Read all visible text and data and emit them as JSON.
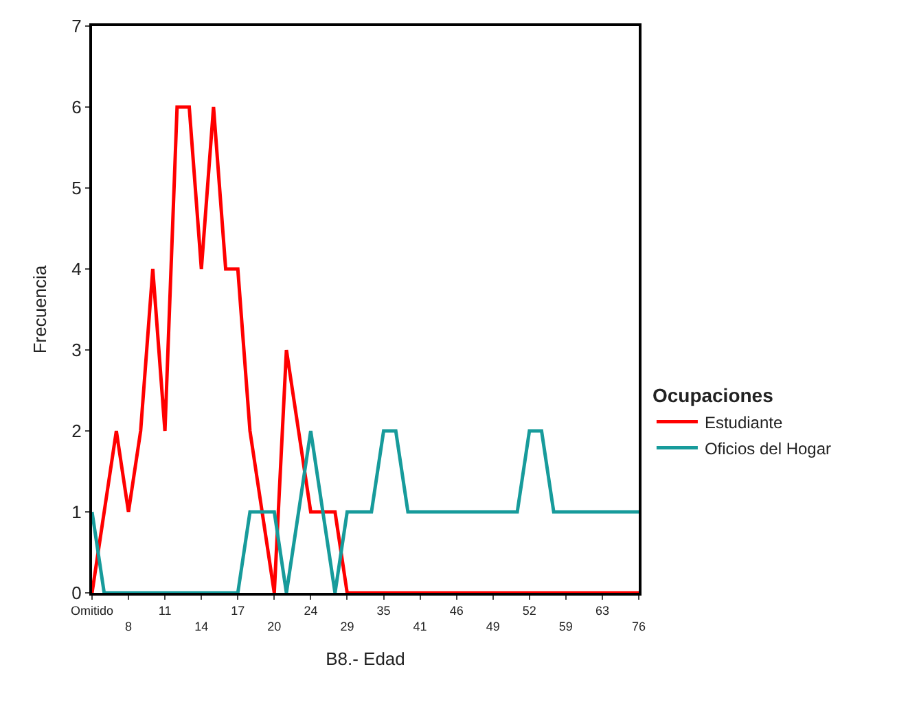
{
  "chart_data": {
    "type": "line",
    "xlabel": "B8.- Edad",
    "ylabel": "Frecuencia",
    "legend_title": "Ocupaciones",
    "categories": [
      "Omitido",
      null,
      null,
      "8",
      null,
      null,
      "11",
      null,
      null,
      "14",
      null,
      null,
      "17",
      null,
      null,
      "20",
      null,
      null,
      "24",
      null,
      null,
      "29",
      null,
      null,
      "35",
      null,
      null,
      "41",
      null,
      null,
      "46",
      null,
      null,
      "49",
      null,
      null,
      "52",
      null,
      null,
      "59",
      null,
      null,
      "63",
      null,
      null,
      "76"
    ],
    "series": [
      {
        "name": "Estudiante",
        "color": "#ff0000",
        "values": [
          0,
          1,
          2,
          1,
          2,
          4,
          2,
          6,
          6,
          4,
          6,
          4,
          4,
          2,
          1,
          0,
          3,
          2,
          1,
          1,
          1,
          0,
          0,
          0,
          0,
          0,
          0,
          0,
          0,
          0,
          0,
          0,
          0,
          0,
          0,
          0,
          0,
          0,
          0,
          0,
          0,
          0,
          0,
          0,
          0,
          0
        ]
      },
      {
        "name": "Oficios del Hogar",
        "color": "#179b9b",
        "values": [
          1,
          0,
          0,
          0,
          0,
          0,
          0,
          0,
          0,
          0,
          0,
          0,
          0,
          1,
          1,
          1,
          0,
          1,
          2,
          1,
          0,
          1,
          1,
          1,
          2,
          2,
          1,
          1,
          1,
          1,
          1,
          1,
          1,
          1,
          1,
          1,
          2,
          2,
          1,
          1,
          1,
          1,
          1,
          1,
          1,
          1
        ]
      }
    ],
    "ylim": [
      0,
      7
    ],
    "yticks": [
      0,
      1,
      2,
      3,
      4,
      5,
      6,
      7
    ],
    "grid": false,
    "legend": "right",
    "marker": "none",
    "line_style": "solid"
  }
}
